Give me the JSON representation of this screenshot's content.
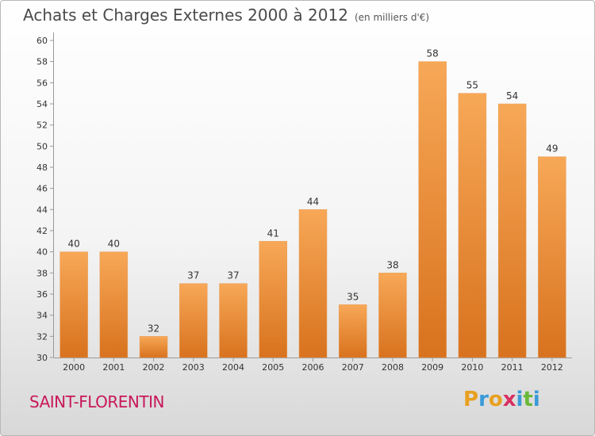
{
  "chart_data": {
    "type": "bar",
    "title": "Achats et Charges Externes 2000 à 2012",
    "subtitle": "(en milliers d'€)",
    "categories": [
      "2000",
      "2001",
      "2002",
      "2003",
      "2004",
      "2005",
      "2006",
      "2007",
      "2008",
      "2009",
      "2010",
      "2011",
      "2012"
    ],
    "values": [
      40,
      40,
      32,
      37,
      37,
      41,
      44,
      35,
      38,
      58,
      55,
      54,
      49
    ],
    "ylim": [
      30,
      60
    ],
    "yticks": [
      30,
      32,
      34,
      36,
      38,
      40,
      42,
      44,
      46,
      48,
      50,
      52,
      54,
      56,
      58,
      60
    ],
    "grid": false,
    "bar_color_top": "#f7a857",
    "bar_color_bottom": "#d8721e"
  },
  "footer": {
    "location": "SAINT-FLORENTIN",
    "brand_letters": [
      "P",
      "r",
      "o",
      "x",
      "i",
      "t",
      "i"
    ],
    "brand_colors": [
      "#e8a020",
      "#3a9ad8",
      "#e8a020",
      "#d83060",
      "#3a9ad8",
      "#6ab83a",
      "#3a9ad8"
    ]
  }
}
